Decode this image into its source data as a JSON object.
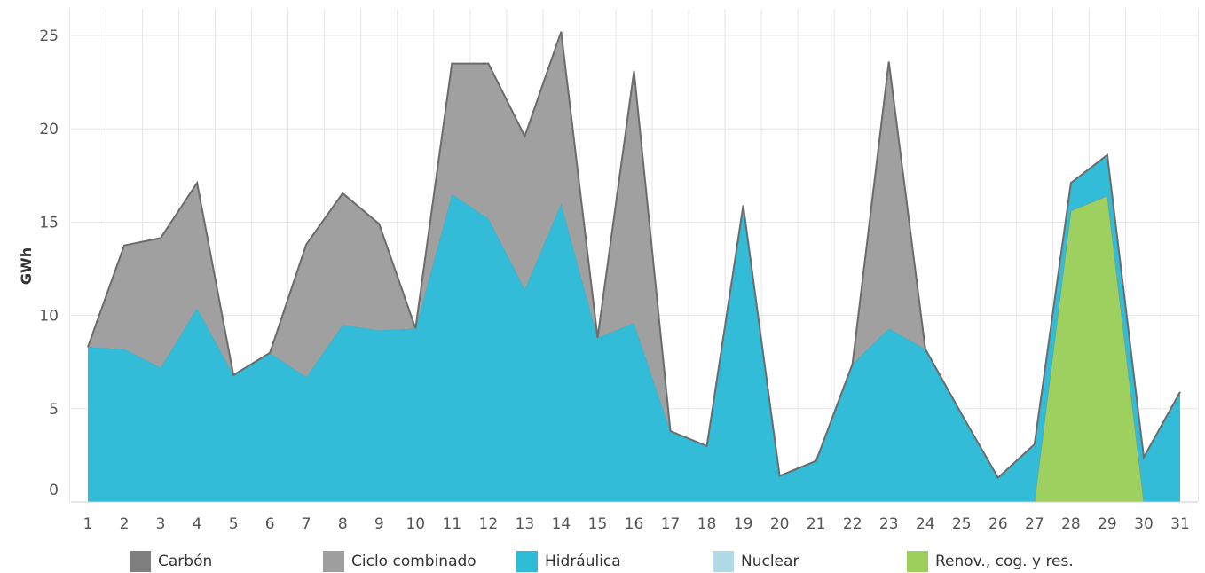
{
  "chart_data": {
    "type": "area",
    "stacked": true,
    "ylabel": "GWh",
    "xlabel": "",
    "ylim": [
      0,
      25.5
    ],
    "yticks": [
      0,
      5,
      10,
      15,
      20,
      25
    ],
    "x": [
      1,
      2,
      3,
      4,
      5,
      6,
      7,
      8,
      9,
      10,
      11,
      12,
      13,
      14,
      15,
      16,
      17,
      18,
      19,
      20,
      21,
      22,
      23,
      24,
      25,
      26,
      27,
      28,
      29,
      30,
      31
    ],
    "grid": true,
    "legend_position": "bottom",
    "series": [
      {
        "name": "Renov., cog. y res.",
        "color": "#9ccf5c",
        "values": [
          0,
          0,
          0,
          0,
          0,
          0,
          0,
          0,
          0,
          0,
          0,
          0,
          0,
          0,
          0,
          0,
          0,
          0,
          0,
          0,
          0,
          0,
          0,
          0,
          0,
          0,
          0,
          15.6,
          16.4,
          0,
          0
        ]
      },
      {
        "name": "Nuclear",
        "color": "#b0dbe6",
        "values": [
          0,
          0,
          0,
          0,
          0,
          0,
          0,
          0,
          0,
          0,
          0,
          0,
          0,
          0,
          0,
          0,
          0,
          0,
          0,
          0,
          0,
          0,
          0,
          0,
          0,
          0,
          0,
          0,
          0,
          0,
          0
        ]
      },
      {
        "name": "Hidráulica",
        "color": "#2ebbd6",
        "values": [
          8.3,
          8.2,
          7.2,
          10.4,
          6.8,
          8.0,
          6.7,
          9.5,
          9.2,
          9.3,
          16.5,
          15.2,
          11.4,
          16.0,
          8.8,
          9.6,
          3.8,
          3.0,
          15.9,
          1.4,
          2.2,
          7.4,
          9.3,
          8.2,
          4.7,
          1.3,
          3.1,
          1.5,
          2.2,
          2.4,
          5.9
        ]
      },
      {
        "name": "Ciclo combinado",
        "color": "#9e9e9e",
        "values": [
          0,
          5.55,
          6.95,
          6.7,
          0,
          0,
          7.1,
          7.05,
          5.7,
          0,
          7.0,
          8.3,
          8.2,
          9.2,
          0,
          13.5,
          0,
          0,
          0,
          0,
          0,
          0,
          14.3,
          0,
          0,
          0,
          0,
          0,
          0,
          0,
          0
        ]
      },
      {
        "name": "Carbón",
        "color": "#7f7f7f",
        "values": [
          0,
          0,
          0,
          0,
          0,
          0,
          0,
          0,
          0,
          0,
          0,
          0,
          0,
          0,
          0,
          0,
          0,
          0,
          0,
          0,
          0,
          0,
          0,
          0,
          0,
          0,
          0,
          0,
          0,
          0,
          0
        ]
      }
    ]
  },
  "legend": {
    "items": [
      {
        "label": "Carbón",
        "color": "#7f7f7f",
        "name": "legend-item-carbon"
      },
      {
        "label": "Ciclo combinado",
        "color": "#9e9e9e",
        "name": "legend-item-ciclo-combinado"
      },
      {
        "label": "Hidráulica",
        "color": "#2ebbd6",
        "name": "legend-item-hidraulica"
      },
      {
        "label": "Nuclear",
        "color": "#b0dbe6",
        "name": "legend-item-nuclear"
      },
      {
        "label": "Renov., cog. y res.",
        "color": "#9ccf5c",
        "name": "legend-item-renovables"
      }
    ]
  }
}
